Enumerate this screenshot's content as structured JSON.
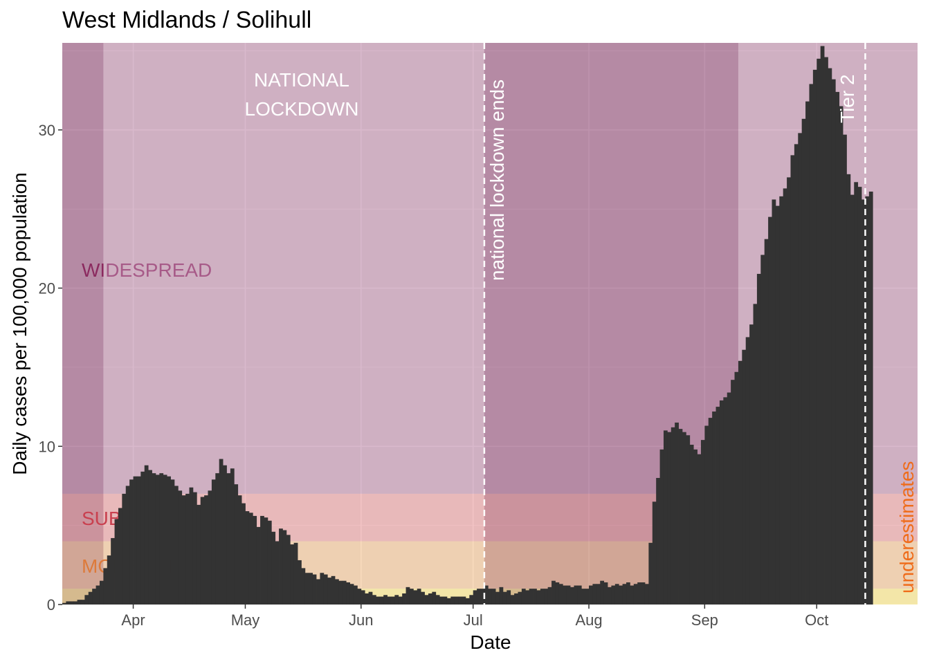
{
  "chart_data": {
    "type": "bar",
    "title": "West Midlands / Solihull",
    "xlabel": "Date",
    "ylabel": "Daily cases per 100,000 population",
    "start_date": "2020-03-13",
    "xlim": [
      "2020-03-13",
      "2020-10-28"
    ],
    "ylim": [
      0,
      35.5
    ],
    "x_ticks": [
      {
        "date": "2020-04-01",
        "label": "Apr"
      },
      {
        "date": "2020-05-01",
        "label": "May"
      },
      {
        "date": "2020-06-01",
        "label": "Jun"
      },
      {
        "date": "2020-07-01",
        "label": "Jul"
      },
      {
        "date": "2020-08-01",
        "label": "Aug"
      },
      {
        "date": "2020-09-01",
        "label": "Sep"
      },
      {
        "date": "2020-10-01",
        "label": "Oct"
      }
    ],
    "y_ticks": [
      0,
      10,
      20,
      30
    ],
    "grid": true,
    "background": "#ebebeb",
    "bar_color": "#333333",
    "values": [
      0.1,
      0.2,
      0.2,
      0.2,
      0.3,
      0.3,
      0.6,
      0.8,
      1.0,
      1.2,
      1.5,
      2.3,
      3.1,
      4.2,
      5.4,
      6.1,
      7.0,
      7.5,
      7.9,
      8.1,
      8.1,
      8.4,
      8.8,
      8.5,
      8.3,
      8.2,
      8.3,
      8.2,
      8.1,
      7.9,
      7.5,
      7.2,
      6.9,
      7.0,
      7.4,
      7.1,
      6.3,
      6.8,
      6.9,
      7.2,
      7.9,
      8.3,
      9.2,
      8.8,
      8.3,
      8.6,
      7.6,
      6.9,
      6.4,
      5.9,
      5.8,
      5.6,
      4.9,
      5.6,
      5.5,
      5.3,
      4.6,
      4.0,
      4.8,
      4.7,
      4.4,
      3.8,
      3.9,
      2.8,
      2.3,
      2.0,
      2.0,
      1.9,
      1.6,
      2.0,
      1.9,
      1.7,
      1.8,
      1.6,
      1.5,
      1.5,
      1.4,
      1.3,
      1.2,
      1.0,
      0.9,
      0.7,
      0.8,
      0.6,
      0.5,
      0.5,
      0.6,
      0.5,
      0.5,
      0.6,
      0.5,
      0.7,
      1.1,
      1.0,
      0.9,
      1.0,
      0.8,
      0.6,
      0.7,
      0.8,
      0.6,
      0.5,
      0.5,
      0.4,
      0.5,
      0.5,
      0.5,
      0.5,
      0.4,
      0.6,
      0.9,
      1.0,
      1.0,
      1.2,
      1.0,
      1.0,
      0.8,
      1.1,
      0.8,
      0.9,
      0.6,
      0.7,
      0.8,
      1.0,
      0.9,
      1.0,
      1.0,
      0.9,
      1.0,
      1.0,
      1.1,
      1.5,
      1.4,
      1.3,
      1.2,
      1.2,
      1.1,
      1.2,
      1.2,
      1.0,
      1.0,
      1.2,
      1.3,
      1.3,
      1.5,
      1.4,
      1.1,
      1.2,
      1.3,
      1.2,
      1.3,
      1.4,
      1.2,
      1.3,
      1.4,
      1.4,
      1.3,
      3.9,
      6.5,
      8.0,
      9.8,
      11.0,
      10.9,
      11.2,
      11.5,
      11.1,
      10.9,
      10.7,
      10.1,
      9.8,
      9.5,
      10.4,
      11.3,
      11.8,
      12.2,
      12.5,
      12.9,
      13.1,
      13.4,
      14.2,
      14.7,
      15.4,
      16.1,
      16.9,
      17.7,
      19.0,
      20.9,
      22.1,
      23.1,
      24.5,
      25.6,
      25.2,
      25.8,
      26.3,
      27.0,
      28.4,
      29.1,
      29.8,
      30.7,
      31.8,
      32.9,
      33.8,
      34.5,
      35.3,
      34.6,
      33.9,
      33.2,
      32.4,
      31.5,
      29.7,
      27.2,
      25.9,
      26.7,
      26.4,
      25.6,
      25.8,
      26.1
    ]
  },
  "background_bands": {
    "widespread_color": "#a0507f",
    "substantial_color": "#e06c6f",
    "moderate_color": "#f0a55c",
    "low_color": "#f5e17f",
    "widespread_label": "WIDESPREAD",
    "substantial_label": "SUBSTANTIAL",
    "moderate_label": "MODERATE",
    "label_dark_color": "#8b2a5f",
    "label_light_color": "#a75a88",
    "substantial_label_color": "#c9404f",
    "moderate_label_color": "#dd7a3a"
  },
  "annotations": {
    "lockdown_label_line1": "NATIONAL",
    "lockdown_label_line2": "LOCKDOWN",
    "lockdown_end_label": "national lockdown ends",
    "tier2_label": "Tier 2",
    "underestimates_label": "underestimates",
    "underestimates_color": "#ef6c1a"
  }
}
